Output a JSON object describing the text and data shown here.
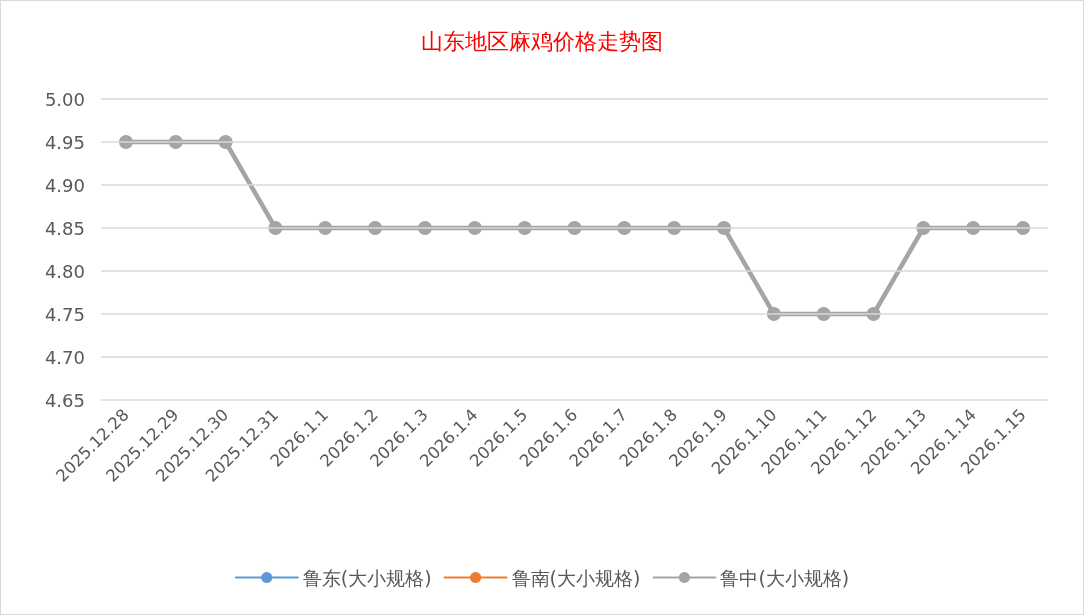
{
  "chart_data": {
    "type": "line",
    "title": "山东地区麻鸡价格走势图",
    "categories": [
      "2025.12.28",
      "2025.12.29",
      "2025.12.30",
      "2025.12.31",
      "2026.1.1",
      "2026.1.2",
      "2026.1.3",
      "2026.1.4",
      "2026.1.5",
      "2026.1.6",
      "2026.1.7",
      "2026.1.8",
      "2026.1.9",
      "2026.1.10",
      "2026.1.11",
      "2026.1.12",
      "2026.1.13",
      "2026.1.14",
      "2026.1.15"
    ],
    "series": [
      {
        "name": "鲁东(大小规格)",
        "color": "#5b9bd5",
        "values": [
          null,
          null,
          null,
          null,
          null,
          null,
          null,
          null,
          null,
          null,
          null,
          null,
          null,
          null,
          null,
          null,
          null,
          null,
          null
        ]
      },
      {
        "name": "鲁南(大小规格)",
        "color": "#ed7d31",
        "values": [
          null,
          null,
          null,
          null,
          null,
          null,
          null,
          null,
          null,
          null,
          null,
          null,
          null,
          null,
          null,
          null,
          null,
          null,
          null
        ]
      },
      {
        "name": "鲁中(大小规格)",
        "color": "#a5a5a5",
        "values": [
          4.95,
          4.95,
          4.95,
          4.85,
          4.85,
          4.85,
          4.85,
          4.85,
          4.85,
          4.85,
          4.85,
          4.85,
          4.85,
          4.75,
          4.75,
          4.75,
          4.85,
          4.85,
          4.85
        ]
      }
    ],
    "ylim": [
      4.65,
      5.0
    ],
    "yticks": [
      4.65,
      {
        "value": 4.7,
        "label": "4.70"
      },
      4.75,
      {
        "value": 4.8,
        "label": "4.80"
      },
      4.85,
      {
        "value": 4.9,
        "label": "4.90"
      },
      4.95,
      {
        "value": 5.0,
        "label": "5.00"
      }
    ],
    "grid": "y",
    "legend": "bottom",
    "marker": "circle",
    "line_style": "solid"
  }
}
